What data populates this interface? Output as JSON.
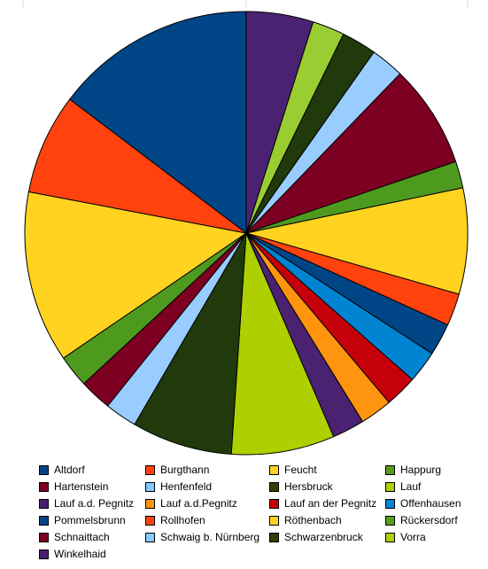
{
  "chart_data": {
    "type": "pie",
    "title": "",
    "start_angle_deg": 0,
    "direction": "clockwise",
    "legend_position": "bottom",
    "slices": [
      {
        "label": "Winkelhaid",
        "value": 5.0,
        "color": "#4b2272"
      },
      {
        "label": "",
        "value": 2.4,
        "color": "#9acd32"
      },
      {
        "label": "",
        "value": 2.6,
        "color": "#213a0b"
      },
      {
        "label": "",
        "value": 2.5,
        "color": "#99ccff"
      },
      {
        "label": "",
        "value": 7.7,
        "color": "#7d0022"
      },
      {
        "label": "",
        "value": 2.0,
        "color": "#4e9a1f"
      },
      {
        "label": "",
        "value": 7.9,
        "color": "#ffd320"
      },
      {
        "label": "",
        "value": 2.4,
        "color": "#ff420e"
      },
      {
        "label": "",
        "value": 2.4,
        "color": "#004586"
      },
      {
        "label": "",
        "value": 2.4,
        "color": "#0084d1"
      },
      {
        "label": "",
        "value": 2.4,
        "color": "#c5000b"
      },
      {
        "label": "",
        "value": 2.4,
        "color": "#ff950e"
      },
      {
        "label": "",
        "value": 2.4,
        "color": "#4b2272"
      },
      {
        "label": "",
        "value": 7.7,
        "color": "#aecf00"
      },
      {
        "label": "",
        "value": 7.5,
        "color": "#213a0b"
      },
      {
        "label": "",
        "value": 2.4,
        "color": "#99ccff"
      },
      {
        "label": "",
        "value": 2.4,
        "color": "#7d0022"
      },
      {
        "label": "",
        "value": 2.4,
        "color": "#4e9a1f"
      },
      {
        "label": "",
        "value": 12.8,
        "color": "#ffd320"
      },
      {
        "label": "",
        "value": 7.5,
        "color": "#ff420e"
      },
      {
        "label": "",
        "value": 15.0,
        "color": "#004586"
      }
    ]
  },
  "legend": {
    "entries": [
      {
        "label": "Altdorf",
        "color": "#004586"
      },
      {
        "label": "Burgthann",
        "color": "#ff420e"
      },
      {
        "label": "Feucht",
        "color": "#ffd320"
      },
      {
        "label": "Happurg",
        "color": "#579d1c"
      },
      {
        "label": "Hartenstein",
        "color": "#7e0021"
      },
      {
        "label": "Henfenfeld",
        "color": "#83caff"
      },
      {
        "label": "Hersbruck",
        "color": "#314004"
      },
      {
        "label": "Lauf",
        "color": "#aecf00"
      },
      {
        "label": "Lauf a.d. Pegnitz",
        "color": "#4b1f6f"
      },
      {
        "label": "Lauf a.d.Pegnitz",
        "color": "#ff950e"
      },
      {
        "label": "Lauf an der Pegnitz",
        "color": "#c5000b"
      },
      {
        "label": "Offenhausen",
        "color": "#0084d1"
      },
      {
        "label": "Pommelsbrunn",
        "color": "#004586"
      },
      {
        "label": "Rollhofen",
        "color": "#ff420e"
      },
      {
        "label": "Röthenbach",
        "color": "#ffd320"
      },
      {
        "label": "Rückersdorf",
        "color": "#579d1c"
      },
      {
        "label": "Schnaittach",
        "color": "#7e0021"
      },
      {
        "label": "Schwaig b. Nürnberg",
        "color": "#83caff"
      },
      {
        "label": "Schwarzenbruck",
        "color": "#314004"
      },
      {
        "label": "Vorra",
        "color": "#aecf00"
      },
      {
        "label": "Winkelhaid",
        "color": "#4b1f6f"
      }
    ]
  }
}
